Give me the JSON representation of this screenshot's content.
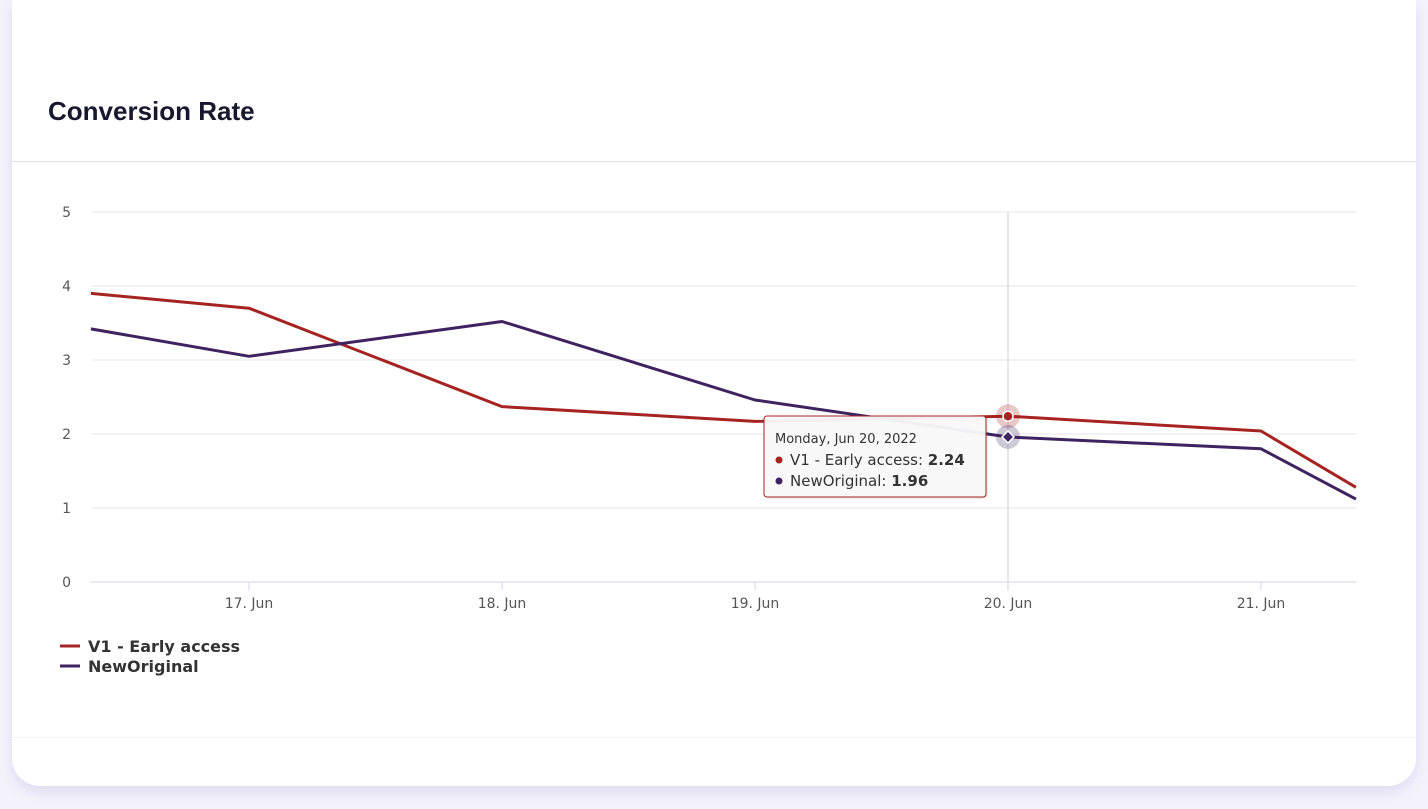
{
  "title": "Conversion Rate",
  "chart_data": {
    "type": "line",
    "title": "Conversion Rate",
    "xlabel": "",
    "ylabel": "",
    "ylim": [
      0,
      5
    ],
    "yticks": [
      "0",
      "1",
      "2",
      "3",
      "4",
      "5"
    ],
    "xticks": [
      "17. Jun",
      "18. Jun",
      "19. Jun",
      "20. Jun",
      "21. Jun"
    ],
    "grid": true,
    "legend": "bottom-left",
    "series": [
      {
        "name": "V1 - Early access",
        "color": "#a52422",
        "points": [
          {
            "x": "2022-06-16T09:00",
            "y": 3.9
          },
          {
            "x": "2022-06-17T00:00",
            "y": 3.7
          },
          {
            "x": "2022-06-18T00:00",
            "y": 2.37
          },
          {
            "x": "2022-06-19T00:00",
            "y": 2.17
          },
          {
            "x": "2022-06-20T00:00",
            "y": 2.24
          },
          {
            "x": "2022-06-21T00:00",
            "y": 2.04
          },
          {
            "x": "2022-06-21T09:00",
            "y": 1.28
          }
        ]
      },
      {
        "name": "NewOriginal",
        "color": "#3f2260",
        "points": [
          {
            "x": "2022-06-16T09:00",
            "y": 3.42
          },
          {
            "x": "2022-06-17T00:00",
            "y": 3.05
          },
          {
            "x": "2022-06-18T00:00",
            "y": 3.52
          },
          {
            "x": "2022-06-19T00:00",
            "y": 2.46
          },
          {
            "x": "2022-06-20T00:00",
            "y": 1.96
          },
          {
            "x": "2022-06-21T00:00",
            "y": 1.8
          },
          {
            "x": "2022-06-21T09:00",
            "y": 1.12
          }
        ]
      }
    ],
    "tooltip": {
      "date": "Monday, Jun 20, 2022",
      "rows": [
        {
          "label": "V1 - Early access: ",
          "value": "2.24",
          "color": "#a52422"
        },
        {
          "label": "NewOriginal: ",
          "value": "1.96",
          "color": "#3f2260"
        }
      ]
    }
  }
}
